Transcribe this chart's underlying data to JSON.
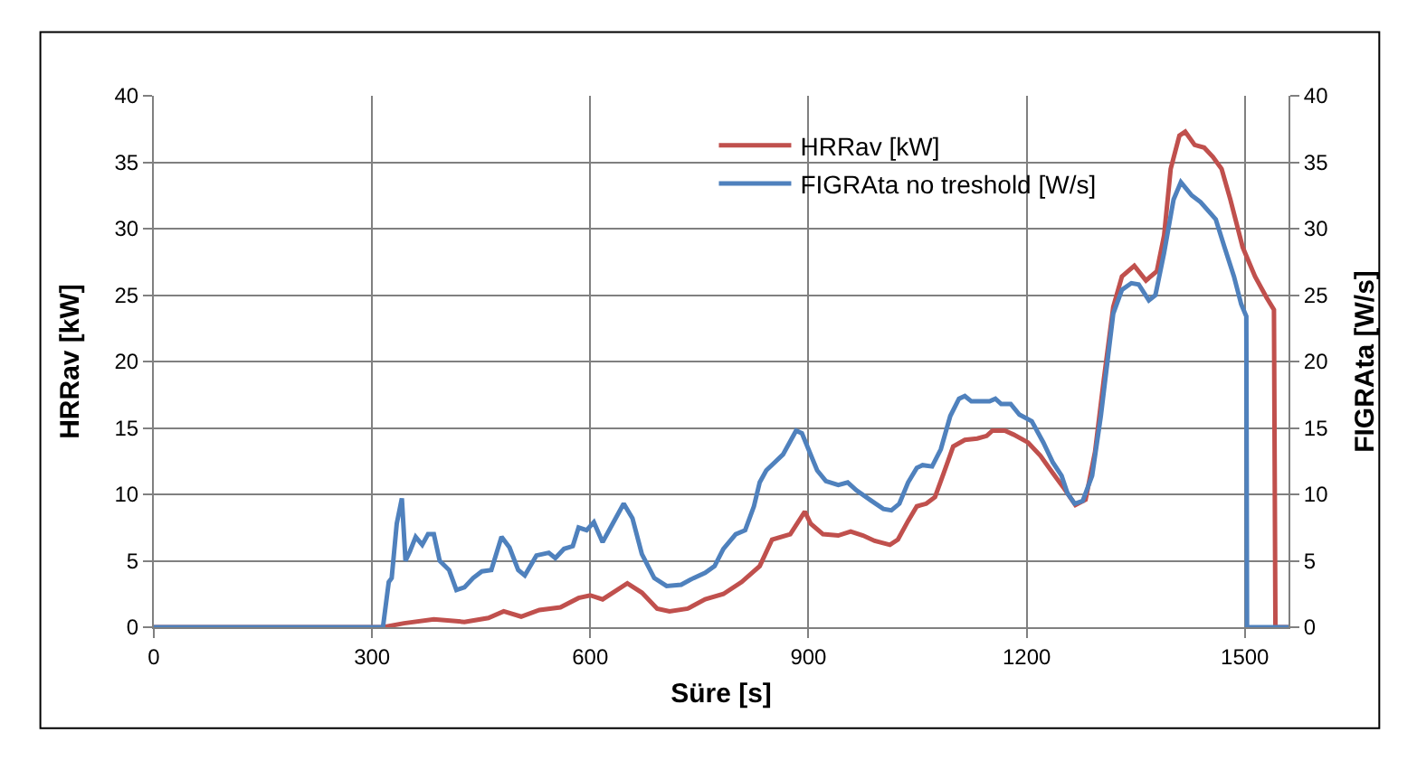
{
  "chart_data": {
    "type": "line",
    "xlabel": "Süre [s]",
    "ylabel": "HRRav [kW]",
    "y2label": "FIGRAta [W/s]",
    "xlim": [
      0,
      1560
    ],
    "xticks": [
      0,
      300,
      600,
      900,
      1200,
      1500
    ],
    "ylim": [
      0,
      40
    ],
    "yticks": [
      0,
      5,
      10,
      15,
      20,
      25,
      30,
      35,
      40
    ],
    "y2lim": [
      0,
      40
    ],
    "y2ticks": [
      0,
      5,
      10,
      15,
      20,
      25,
      30,
      35,
      40
    ],
    "grid": true,
    "legend": "top right",
    "marker": "none",
    "line_style": "solid",
    "series": [
      {
        "name": "HRRav [kW]",
        "color": "#c0504d",
        "x": [
          0,
          315,
          344,
          385,
          427,
          460,
          481,
          505,
          530,
          559,
          584,
          600,
          617,
          651,
          671,
          692,
          709,
          734,
          758,
          783,
          808,
          833,
          850,
          875,
          895,
          903,
          920,
          941,
          958,
          975,
          991,
          1012,
          1023,
          1037,
          1049,
          1062,
          1074,
          1086,
          1099,
          1115,
          1132,
          1145,
          1153,
          1170,
          1182,
          1202,
          1219,
          1236,
          1252,
          1267,
          1281,
          1294,
          1306,
          1319,
          1331,
          1348,
          1364,
          1379,
          1389,
          1398,
          1410,
          1418,
          1431,
          1444,
          1456,
          1468,
          1480,
          1497,
          1514,
          1530,
          1540,
          1542,
          1560
        ],
        "values": [
          0,
          0,
          0.3,
          0.6,
          0.4,
          0.7,
          1.2,
          0.8,
          1.3,
          1.5,
          2.2,
          2.4,
          2.1,
          3.3,
          2.6,
          1.4,
          1.2,
          1.4,
          2.1,
          2.5,
          3.4,
          4.6,
          6.6,
          7.0,
          8.7,
          7.8,
          7.0,
          6.9,
          7.2,
          6.9,
          6.5,
          6.2,
          6.6,
          8.0,
          9.1,
          9.3,
          9.8,
          11.6,
          13.6,
          14.1,
          14.2,
          14.4,
          14.8,
          14.8,
          14.5,
          13.9,
          12.9,
          11.6,
          10.4,
          9.2,
          9.6,
          13.2,
          18.6,
          24.1,
          26.4,
          27.2,
          26.1,
          26.8,
          29.5,
          34.5,
          37.0,
          37.3,
          36.3,
          36.1,
          35.4,
          34.5,
          32.2,
          28.6,
          26.4,
          24.8,
          23.9,
          0,
          0
        ]
      },
      {
        "name": "FIGRAta no treshold [W/s]",
        "color": "#4f81bd",
        "axis": "y2",
        "x": [
          0,
          315,
          323,
          327,
          334,
          341,
          346,
          352,
          360,
          369,
          377,
          385,
          393,
          406,
          416,
          427,
          439,
          451,
          464,
          478,
          489,
          501,
          510,
          526,
          543,
          552,
          564,
          576,
          584,
          595,
          605,
          617,
          630,
          646,
          658,
          671,
          688,
          705,
          725,
          742,
          758,
          771,
          783,
          800,
          813,
          825,
          833,
          842,
          865,
          883,
          891,
          900,
          912,
          924,
          941,
          954,
          966,
          987,
          1003,
          1014,
          1025,
          1037,
          1049,
          1057,
          1070,
          1082,
          1095,
          1107,
          1115,
          1124,
          1149,
          1157,
          1165,
          1178,
          1190,
          1207,
          1223,
          1236,
          1248,
          1256,
          1266,
          1277,
          1290,
          1302,
          1319,
          1331,
          1344,
          1354,
          1368,
          1377,
          1389,
          1402,
          1412,
          1427,
          1439,
          1452,
          1460,
          1472,
          1485,
          1495,
          1502,
          1503,
          1560
        ],
        "values": [
          0,
          0,
          3.4,
          3.7,
          7.8,
          9.7,
          5.0,
          5.7,
          6.8,
          6.2,
          7.0,
          7.0,
          5.0,
          4.3,
          2.8,
          3.0,
          3.7,
          4.2,
          4.3,
          6.8,
          6.0,
          4.3,
          3.9,
          5.4,
          5.6,
          5.2,
          5.9,
          6.1,
          7.5,
          7.3,
          7.9,
          6.4,
          7.7,
          9.3,
          8.2,
          5.5,
          3.7,
          3.1,
          3.2,
          3.7,
          4.1,
          4.6,
          5.9,
          7.0,
          7.3,
          9.1,
          10.9,
          11.8,
          13.0,
          14.8,
          14.6,
          13.4,
          11.8,
          11.0,
          10.7,
          10.9,
          10.3,
          9.5,
          8.9,
          8.8,
          9.3,
          10.9,
          12.0,
          12.2,
          12.1,
          13.4,
          15.9,
          17.2,
          17.4,
          17.0,
          17.0,
          17.2,
          16.8,
          16.8,
          16.0,
          15.5,
          13.9,
          12.4,
          11.4,
          10.1,
          9.3,
          9.5,
          11.4,
          15.9,
          23.6,
          25.4,
          25.9,
          25.8,
          24.6,
          25.0,
          28.2,
          32.2,
          33.5,
          32.5,
          32.0,
          31.2,
          30.7,
          28.6,
          26.4,
          24.3,
          23.4,
          0,
          0
        ]
      }
    ]
  }
}
